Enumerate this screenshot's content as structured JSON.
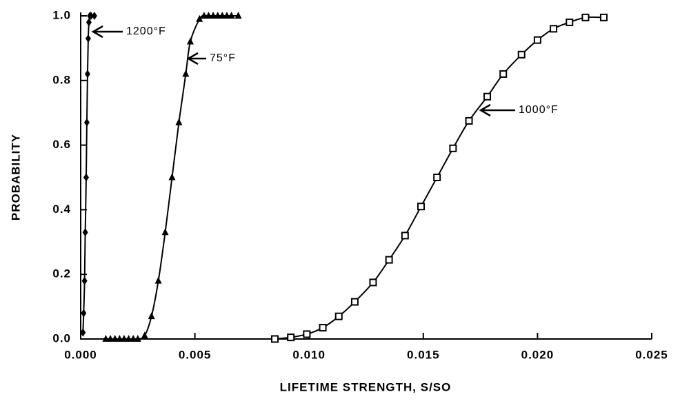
{
  "chart_data": {
    "type": "line",
    "x_label": "LIFETIME STRENGTH, S/SO",
    "y_label": "PROBABILITY",
    "xlim": [
      0,
      0.025
    ],
    "ylim": [
      0,
      1
    ],
    "xticks": [
      {
        "value": 0,
        "label": "0.000"
      },
      {
        "value": 0.005,
        "label": "0.005"
      },
      {
        "value": 0.01,
        "label": "0.010"
      },
      {
        "value": 0.015,
        "label": "0.015"
      },
      {
        "value": 0.02,
        "label": "0.020"
      },
      {
        "value": 0.025,
        "label": "0.025"
      }
    ],
    "yticks": [
      {
        "value": 0,
        "label": "0.0"
      },
      {
        "value": 0.2,
        "label": "0.2"
      },
      {
        "value": 0.4,
        "label": "0.4"
      },
      {
        "value": 0.6,
        "label": "0.6"
      },
      {
        "value": 0.8,
        "label": "0.8"
      },
      {
        "value": 1,
        "label": "1.0"
      }
    ],
    "series": [
      {
        "name": "1200°F",
        "color": "#000000",
        "marker": "diamond",
        "x": [
          0.0001,
          0.00013,
          0.00017,
          0.0002,
          0.00024,
          0.00027,
          0.0003,
          0.00033,
          0.00036,
          0.0004,
          0.00045,
          0.0006
        ],
        "values": [
          0.02,
          0.08,
          0.18,
          0.33,
          0.5,
          0.67,
          0.82,
          0.93,
          0.98,
          1.0,
          1.0,
          1.0
        ]
      },
      {
        "name": "75°F",
        "color": "#000000",
        "marker": "triangle",
        "x": [
          0.0011,
          0.0013,
          0.0015,
          0.0017,
          0.0019,
          0.0021,
          0.0023,
          0.0025,
          0.0028,
          0.0031,
          0.0034,
          0.0037,
          0.004,
          0.0043,
          0.0046,
          0.0048,
          0.0052,
          0.0054,
          0.0056,
          0.0058,
          0.006,
          0.0062,
          0.0064,
          0.0066,
          0.0069
        ],
        "values": [
          0,
          0,
          0,
          0,
          0,
          0,
          0,
          0,
          0.01,
          0.07,
          0.18,
          0.33,
          0.5,
          0.67,
          0.82,
          0.92,
          0.99,
          1.0,
          1.0,
          1.0,
          1.0,
          1.0,
          1.0,
          1.0,
          1.0
        ]
      },
      {
        "name": "1000°F",
        "color": "#000000",
        "marker": "square",
        "x": [
          0.0085,
          0.0092,
          0.0099,
          0.0106,
          0.0113,
          0.012,
          0.0128,
          0.0135,
          0.0142,
          0.0149,
          0.0156,
          0.0163,
          0.017,
          0.0178,
          0.0185,
          0.0193,
          0.02,
          0.0207,
          0.0214,
          0.0221,
          0.0229
        ],
        "values": [
          0.0,
          0.005,
          0.015,
          0.035,
          0.07,
          0.115,
          0.175,
          0.245,
          0.32,
          0.41,
          0.5,
          0.59,
          0.675,
          0.75,
          0.82,
          0.88,
          0.925,
          0.96,
          0.98,
          0.995,
          0.995
        ]
      }
    ]
  }
}
